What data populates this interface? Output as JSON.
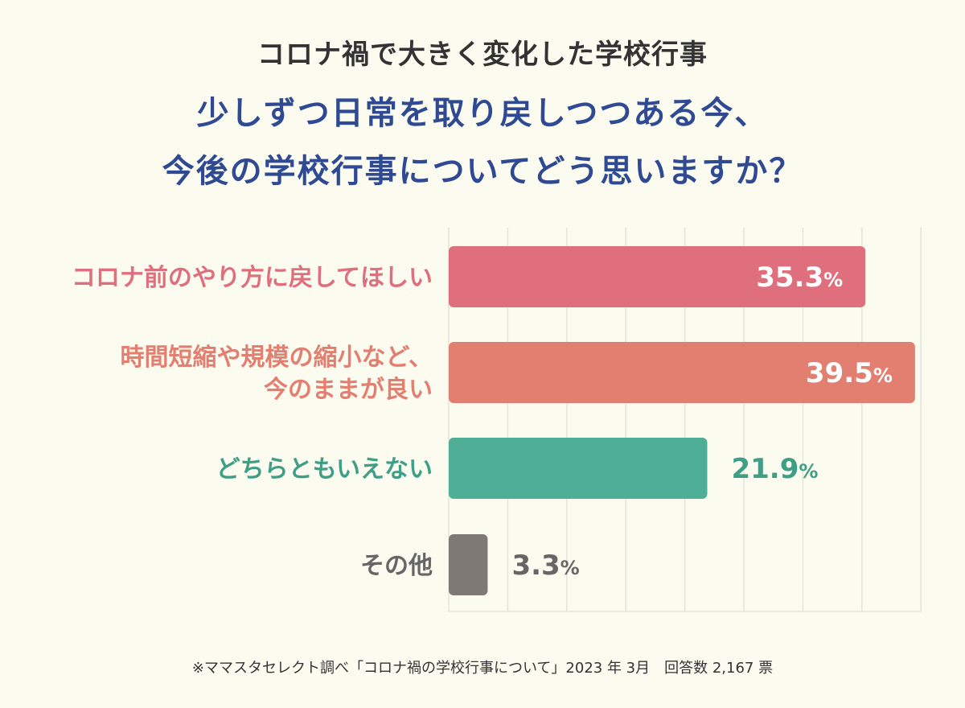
{
  "supertitle": "コロナ禍で大きく変化した学校行事",
  "title_lines": [
    "少しずつ日常を取り戻しつつある今、",
    "今後の学校行事についてどう思いますか？"
  ],
  "footnote": "※ママスタセレクト調べ「コロナ禍の学校行事について」2023 年 3月　回答数 2,167 票",
  "chart_data": {
    "type": "bar",
    "orientation": "horizontal",
    "categories": [
      [
        "コロナ前のやり方に戻してほしい"
      ],
      [
        "時間短縮や規模の縮小など、",
        "今のままが良い"
      ],
      [
        "どちらともいえない"
      ],
      [
        "その他"
      ]
    ],
    "values": [
      35.3,
      39.5,
      21.9,
      3.3
    ],
    "value_labels": [
      "35.3",
      "39.5",
      "21.9",
      "3.3"
    ],
    "unit": "%",
    "bar_colors": [
      "#df6f7d",
      "#e37f70",
      "#4fae96",
      "#7f7976"
    ],
    "label_colors": [
      "#df6f7d",
      "#e37f70",
      "#3f9e86",
      "#666666"
    ],
    "value_label_colors": [
      "#ffffff",
      "#ffffff",
      "#3f9e86",
      "#666666"
    ],
    "value_label_inside": [
      true,
      true,
      false,
      false
    ],
    "xlim": [
      0,
      40
    ],
    "grid": true
  }
}
